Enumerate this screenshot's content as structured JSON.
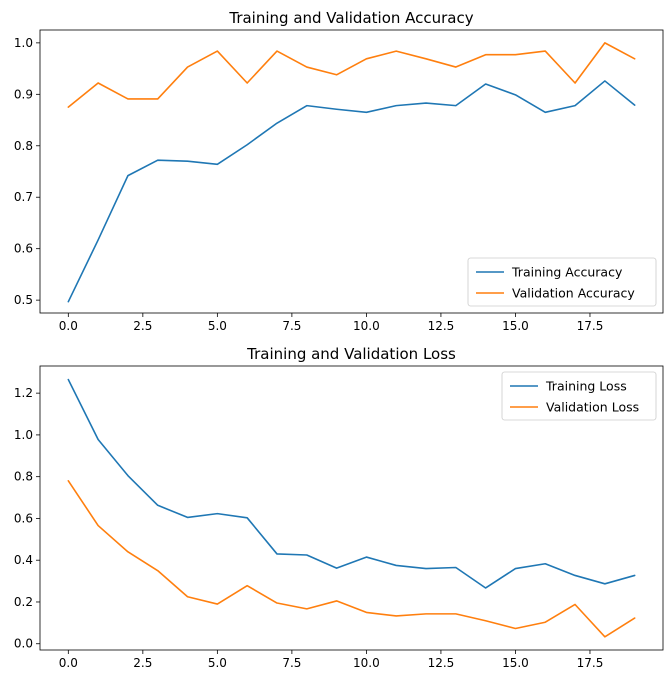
{
  "chart_data": [
    {
      "type": "line",
      "title": "Training and Validation Accuracy",
      "xlabel": "",
      "ylabel": "",
      "x": [
        0,
        1,
        2,
        3,
        4,
        5,
        6,
        7,
        8,
        9,
        10,
        11,
        12,
        13,
        14,
        15,
        16,
        17,
        18,
        19
      ],
      "xlim": [
        -0.95,
        19.95
      ],
      "ylim": [
        0.475,
        1.025
      ],
      "xticks": [
        0,
        2.5,
        5,
        7.5,
        10,
        12.5,
        15,
        17.5
      ],
      "xtick_labels": [
        "0.0",
        "2.5",
        "5.0",
        "7.5",
        "10.0",
        "12.5",
        "15.0",
        "17.5"
      ],
      "yticks": [
        0.5,
        0.6,
        0.7,
        0.8,
        0.9,
        1.0
      ],
      "ytick_labels": [
        "0.5",
        "0.6",
        "0.7",
        "0.8",
        "0.9",
        "1.0"
      ],
      "grid": false,
      "legend_position": "bottom-right",
      "series": [
        {
          "name": "Training Accuracy",
          "color": "#1f77b4",
          "values": [
            0.497,
            0.617,
            0.742,
            0.772,
            0.77,
            0.764,
            0.802,
            0.844,
            0.878,
            0.871,
            0.865,
            0.878,
            0.883,
            0.878,
            0.92,
            0.899,
            0.865,
            0.878,
            0.926,
            0.879
          ]
        },
        {
          "name": "Validation Accuracy",
          "color": "#ff7f0e",
          "values": [
            0.875,
            0.922,
            0.891,
            0.891,
            0.953,
            0.984,
            0.922,
            0.984,
            0.953,
            0.938,
            0.969,
            0.984,
            0.969,
            0.953,
            0.977,
            0.977,
            0.984,
            0.922,
            1.0,
            0.969
          ]
        }
      ]
    },
    {
      "type": "line",
      "title": "Training and Validation Loss",
      "xlabel": "",
      "ylabel": "",
      "x": [
        0,
        1,
        2,
        3,
        4,
        5,
        6,
        7,
        8,
        9,
        10,
        11,
        12,
        13,
        14,
        15,
        16,
        17,
        18,
        19
      ],
      "xlim": [
        -0.95,
        19.95
      ],
      "ylim": [
        -0.03,
        1.33
      ],
      "xticks": [
        0,
        2.5,
        5,
        7.5,
        10,
        12.5,
        15,
        17.5
      ],
      "xtick_labels": [
        "0.0",
        "2.5",
        "5.0",
        "7.5",
        "10.0",
        "12.5",
        "15.0",
        "17.5"
      ],
      "yticks": [
        0.0,
        0.2,
        0.4,
        0.6,
        0.8,
        1.0,
        1.2
      ],
      "ytick_labels": [
        "0.0",
        "0.2",
        "0.4",
        "0.6",
        "0.8",
        "1.0",
        "1.2"
      ],
      "grid": false,
      "legend_position": "top-right",
      "series": [
        {
          "name": "Training Loss",
          "color": "#1f77b4",
          "values": [
            1.265,
            0.978,
            0.805,
            0.663,
            0.605,
            0.623,
            0.603,
            0.43,
            0.425,
            0.362,
            0.415,
            0.375,
            0.36,
            0.365,
            0.267,
            0.36,
            0.383,
            0.327,
            0.287,
            0.327
          ]
        },
        {
          "name": "Validation Loss",
          "color": "#ff7f0e",
          "values": [
            0.78,
            0.566,
            0.44,
            0.35,
            0.225,
            0.19,
            0.278,
            0.195,
            0.167,
            0.205,
            0.15,
            0.133,
            0.143,
            0.143,
            0.11,
            0.073,
            0.103,
            0.188,
            0.033,
            0.123
          ]
        }
      ]
    }
  ]
}
